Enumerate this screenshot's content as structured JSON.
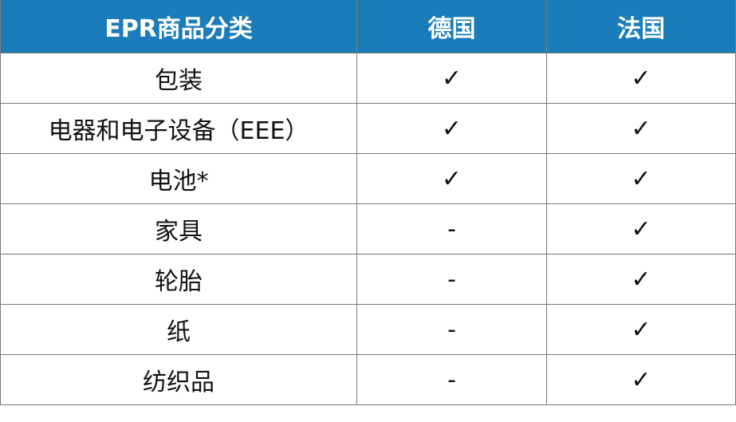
{
  "table": {
    "header": [
      "EPR商品分类",
      "德国",
      "法国"
    ],
    "rows": [
      [
        "包装",
        "✓",
        "✓"
      ],
      [
        "电器和电子设备（EEE）",
        "✓",
        "✓"
      ],
      [
        "电池*",
        "✓",
        "✓"
      ],
      [
        "家具",
        "-",
        "✓"
      ],
      [
        "轮胎",
        "-",
        "✓"
      ],
      [
        "纸",
        "-",
        "✓"
      ],
      [
        "纺织品",
        "-",
        "✓"
      ]
    ]
  }
}
